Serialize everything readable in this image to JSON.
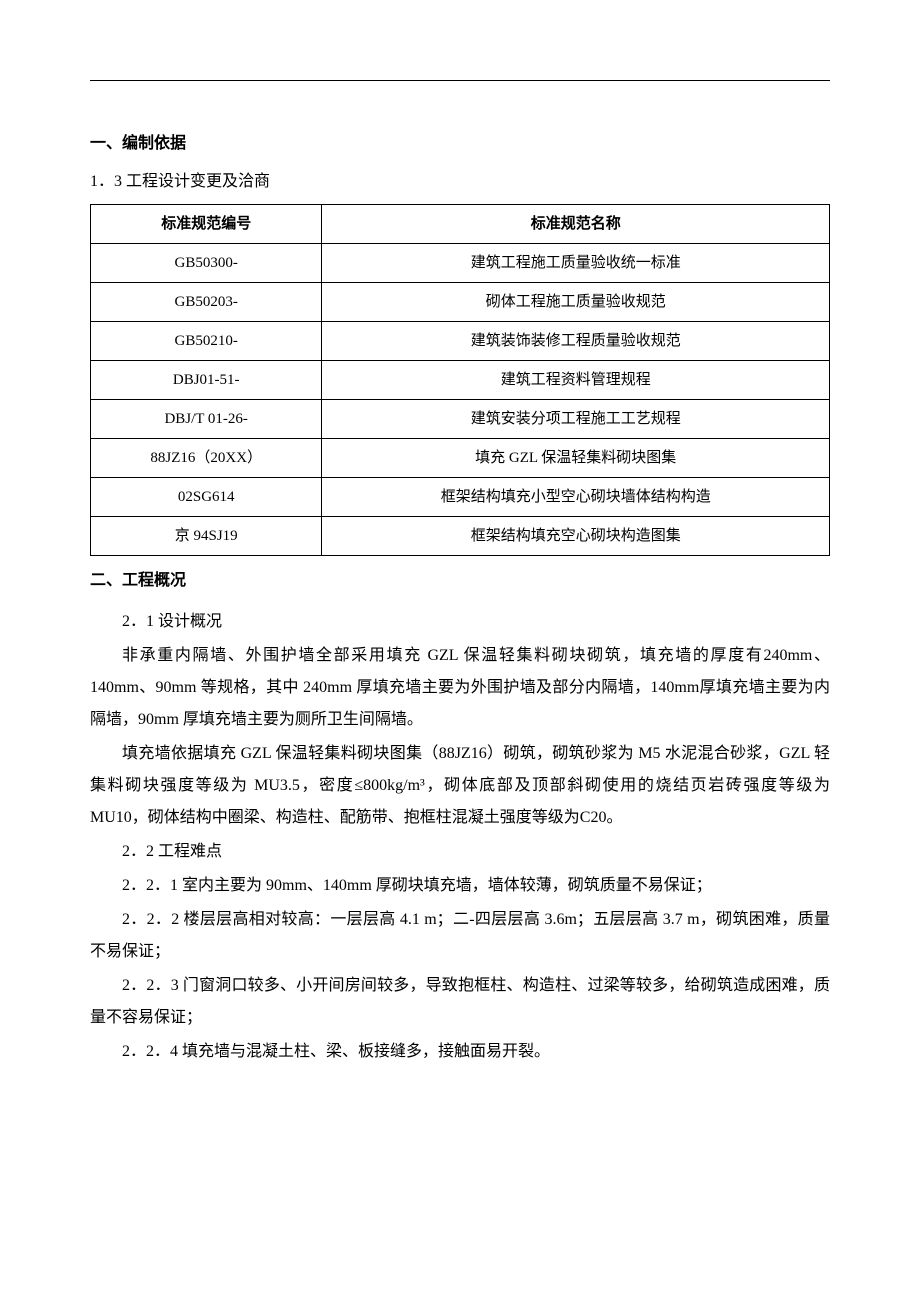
{
  "section1": {
    "heading": "一、编制依据",
    "subheading": "1．3 工程设计变更及洽商",
    "table": {
      "headers": {
        "col1": "标准规范编号",
        "col2": "标准规范名称"
      },
      "rows": [
        {
          "code": "GB50300-",
          "name": "建筑工程施工质量验收统一标准"
        },
        {
          "code": "GB50203-",
          "name": "砌体工程施工质量验收规范"
        },
        {
          "code": "GB50210-",
          "name": "建筑装饰装修工程质量验收规范"
        },
        {
          "code": "DBJ01-51-",
          "name": "建筑工程资料管理规程"
        },
        {
          "code": "DBJ/T 01-26-",
          "name": "建筑安装分项工程施工工艺规程"
        },
        {
          "code": "88JZ16（20XX）",
          "name": "填充 GZL 保温轻集料砌块图集"
        },
        {
          "code": "02SG614",
          "name": "框架结构填充小型空心砌块墙体结构构造"
        },
        {
          "code": "京 94SJ19",
          "name": "框架结构填充空心砌块构造图集"
        }
      ]
    }
  },
  "section2": {
    "heading": "二、工程概况",
    "sub1": {
      "title": "2．1 设计概况",
      "para1": "非承重内隔墙、外围护墙全部采用填充 GZL 保温轻集料砌块砌筑，填充墙的厚度有240mm、140mm、90mm 等规格，其中 240mm 厚填充墙主要为外围护墙及部分内隔墙，140mm厚填充墙主要为内隔墙，90mm 厚填充墙主要为厕所卫生间隔墙。",
      "para2": "填充墙依据填充 GZL 保温轻集料砌块图集（88JZ16）砌筑，砌筑砂浆为 M5 水泥混合砂浆，GZL 轻集料砌块强度等级为 MU3.5，密度≤800kg/m³，砌体底部及顶部斜砌使用的烧结页岩砖强度等级为 MU10，砌体结构中圈梁、构造柱、配筋带、抱框柱混凝土强度等级为C20。"
    },
    "sub2": {
      "title": "2．2 工程难点",
      "item1": "2．2．1 室内主要为 90mm、140mm 厚砌块填充墙，墙体较薄，砌筑质量不易保证；",
      "item2": "2．2．2 楼层层高相对较高：一层层高 4.1 m；二-四层层高 3.6m；五层层高 3.7 m，砌筑困难，质量不易保证；",
      "item3": "2．2．3 门窗洞口较多、小开间房间较多，导致抱框柱、构造柱、过梁等较多，给砌筑造成困难，质量不容易保证；",
      "item4": "2．2．4 填充墙与混凝土柱、梁、板接缝多，接触面易开裂。"
    }
  }
}
